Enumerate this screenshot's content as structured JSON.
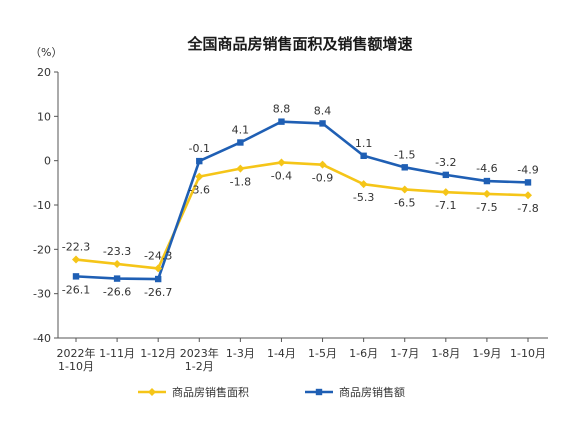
{
  "chart_data": {
    "type": "line",
    "title": "全国商品房销售面积及销售额增速",
    "ylabel": "（%）",
    "ylim": [
      -40,
      20
    ],
    "yticks": [
      20,
      10,
      0,
      -10,
      -20,
      -30,
      -40
    ],
    "grid": false,
    "legend_position": "bottom",
    "categories": [
      [
        "2022年",
        "1-10月"
      ],
      [
        "1-11月"
      ],
      [
        "1-12月"
      ],
      [
        "2023年",
        "1-2月"
      ],
      [
        "1-3月"
      ],
      [
        "1-4月"
      ],
      [
        "1-5月"
      ],
      [
        "1-6月"
      ],
      [
        "1-7月"
      ],
      [
        "1-8月"
      ],
      [
        "1-9月"
      ],
      [
        "1-10月"
      ]
    ],
    "series": [
      {
        "name": "商品房销售面积",
        "color": "#F5C518",
        "marker": "diamond",
        "values": [
          -22.3,
          -23.3,
          -24.3,
          -3.6,
          -1.8,
          -0.4,
          -0.9,
          -5.3,
          -6.5,
          -7.1,
          -7.5,
          -7.8
        ]
      },
      {
        "name": "商品房销售额",
        "color": "#1F5FB4",
        "marker": "square",
        "values": [
          -26.1,
          -26.6,
          -26.7,
          -0.1,
          4.1,
          8.8,
          8.4,
          1.1,
          -1.5,
          -3.2,
          -4.6,
          -4.9
        ]
      }
    ]
  }
}
